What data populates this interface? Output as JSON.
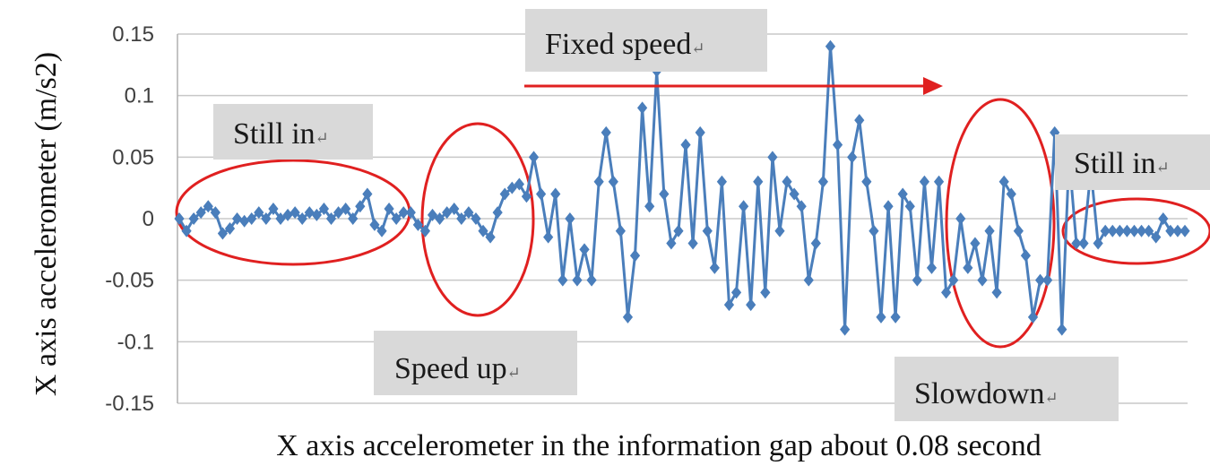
{
  "chart_data": {
    "type": "line",
    "title": "",
    "xlabel": "X axis accelerometer in the information gap about 0.08 second",
    "ylabel": "X axis accelerometer (m/s2)",
    "ylim": [
      -0.15,
      0.15
    ],
    "yticks": [
      "0.15",
      "0.1",
      "0.05",
      "0",
      "-0.05",
      "-0.1",
      "-0.15"
    ],
    "grid": true,
    "legend": "none",
    "series": [
      {
        "color": "#4a7ebb",
        "marker": "diamond",
        "values": [
          0,
          -0.01,
          0,
          0.005,
          0.01,
          0.005,
          -0.012,
          -0.008,
          0,
          -0.002,
          0,
          0.005,
          0,
          0.008,
          0,
          0.003,
          0.005,
          0,
          0.005,
          0.003,
          0.008,
          0,
          0.005,
          0.008,
          0,
          0.01,
          0.02,
          -0.005,
          -0.01,
          0.008,
          0,
          0.005,
          0.005,
          -0.005,
          -0.01,
          0.003,
          0,
          0.005,
          0.008,
          0,
          0.005,
          0,
          -0.01,
          -0.015,
          0.005,
          0.02,
          0.025,
          0.028,
          0.018,
          0.05,
          0.02,
          -0.015,
          0.02,
          -0.05,
          0,
          -0.05,
          -0.025,
          -0.05,
          0.03,
          0.07,
          0.03,
          -0.01,
          -0.08,
          -0.03,
          0.09,
          0.01,
          0.12,
          0.02,
          -0.02,
          -0.01,
          0.06,
          -0.02,
          0.07,
          -0.01,
          -0.04,
          0.03,
          -0.07,
          -0.06,
          0.01,
          -0.07,
          0.03,
          -0.06,
          0.05,
          -0.01,
          0.03,
          0.02,
          0.01,
          -0.05,
          -0.02,
          0.03,
          0.14,
          0.06,
          -0.09,
          0.05,
          0.08,
          0.03,
          -0.01,
          -0.08,
          0.01,
          -0.08,
          0.02,
          0.01,
          -0.05,
          0.03,
          -0.04,
          0.03,
          -0.06,
          -0.05,
          0,
          -0.04,
          -0.02,
          -0.05,
          -0.01,
          -0.06,
          0.03,
          0.02,
          -0.01,
          -0.03,
          -0.08,
          -0.05,
          -0.05,
          0.07,
          -0.09,
          0.05,
          -0.02,
          -0.02,
          0.04,
          -0.02,
          -0.01,
          -0.01,
          -0.01,
          -0.01,
          -0.01,
          -0.01,
          -0.01,
          -0.015,
          0,
          -0.01,
          -0.01,
          -0.01
        ]
      }
    ],
    "annotations": [
      {
        "text": "Still in",
        "mark": "↵"
      },
      {
        "text": "Speed up",
        "mark": "↵"
      },
      {
        "text": "Fixed speed",
        "mark": "↵"
      },
      {
        "text": "Slowdown",
        "mark": "↵"
      },
      {
        "text": "Still in",
        "mark": "↵"
      }
    ],
    "highlight_color": "#e02020"
  }
}
